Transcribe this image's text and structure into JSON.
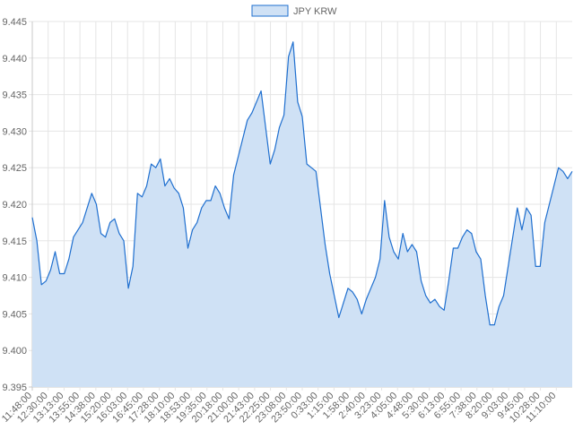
{
  "colors": {
    "line": "#1f6fcf",
    "fill": "#cfe1f5",
    "grid": "#e5e5e5",
    "axis": "#c8c8c8",
    "text": "#666666"
  },
  "chart_data": {
    "type": "area",
    "legend": {
      "position": "top-center",
      "label": "JPY KRW"
    },
    "grid": true,
    "xlabel": "",
    "ylabel": "",
    "ylim": [
      9.395,
      9.445
    ],
    "y_ticks": [
      "9.395",
      "9.400",
      "9.405",
      "9.410",
      "9.415",
      "9.420",
      "9.425",
      "9.430",
      "9.435",
      "9.440",
      "9.445"
    ],
    "x_ticks": [
      "11:48:00",
      "12:30:00",
      "13:13:00",
      "13:55:00",
      "14:38:00",
      "15:20:00",
      "16:03:00",
      "16:45:00",
      "17:28:00",
      "18:10:00",
      "18:53:00",
      "19:35:00",
      "20:18:00",
      "21:00:00",
      "21:43:00",
      "22:25:00",
      "23:08:00",
      "23:50:00",
      "0:33:00",
      "1:15:00",
      "1:58:00",
      "2:40:00",
      "3:23:00",
      "4:05:00",
      "4:48:00",
      "5:30:00",
      "6:13:00",
      "6:55:00",
      "7:38:00",
      "8:20:00",
      "9:03:00",
      "9:45:00",
      "10:28:00",
      "11:10:00"
    ],
    "series": [
      {
        "name": "JPY KRW",
        "values": [
          9.4182,
          9.415,
          9.409,
          9.4095,
          9.411,
          9.4135,
          9.4105,
          9.4105,
          9.4125,
          9.4155,
          9.4165,
          9.4175,
          9.4195,
          9.4215,
          9.42,
          9.416,
          9.4155,
          9.4175,
          9.418,
          9.416,
          9.415,
          9.4085,
          9.4115,
          9.4215,
          9.421,
          9.4225,
          9.4255,
          9.425,
          9.4262,
          9.4225,
          9.4235,
          9.4222,
          9.4215,
          9.4195,
          9.414,
          9.4165,
          9.4175,
          9.4195,
          9.4205,
          9.4205,
          9.4225,
          9.4215,
          9.4195,
          9.418,
          9.424,
          9.4265,
          9.429,
          9.4315,
          9.4325,
          9.434,
          9.4355,
          9.4305,
          9.4255,
          9.4275,
          9.4305,
          9.4322,
          9.4402,
          9.4422,
          9.434,
          9.432,
          9.4255,
          9.425,
          9.4245,
          9.4195,
          9.4145,
          9.4105,
          9.4075,
          9.4045,
          9.4065,
          9.4085,
          9.408,
          9.407,
          9.405,
          9.407,
          9.4085,
          9.41,
          9.4125,
          9.4205,
          9.4155,
          9.4135,
          9.4125,
          9.416,
          9.4135,
          9.4145,
          9.4135,
          9.4095,
          9.4075,
          9.4065,
          9.407,
          9.406,
          9.4055,
          9.4095,
          9.414,
          9.414,
          9.4155,
          9.4165,
          9.416,
          9.4135,
          9.4125,
          9.4075,
          9.4035,
          9.4035,
          9.406,
          9.4075,
          9.4115,
          9.4155,
          9.4195,
          9.4165,
          9.4195,
          9.4185,
          9.4115,
          9.4115,
          9.4175,
          9.42,
          9.4225,
          9.425,
          9.4245,
          9.4235,
          9.4245
        ]
      }
    ]
  }
}
